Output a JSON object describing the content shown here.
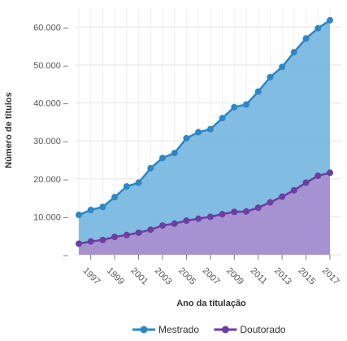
{
  "chart_data": {
    "type": "area",
    "x": [
      1996,
      1997,
      1998,
      1999,
      2000,
      2001,
      2002,
      2003,
      2004,
      2005,
      2006,
      2007,
      2008,
      2009,
      2010,
      2011,
      2012,
      2013,
      2014,
      2015,
      2016,
      2017
    ],
    "x_tick_labels": [
      "1997",
      "1999",
      "2001",
      "2003",
      "2005",
      "2007",
      "2009",
      "2011",
      "2013",
      "2015",
      "2017"
    ],
    "y_tick_labels": [
      "–",
      "10.000",
      "20.000",
      "30.000",
      "40.000",
      "50.000",
      "60.000"
    ],
    "series": [
      {
        "name": "Mestrado",
        "color": "#2f86c3",
        "fill": "#7ab8e0",
        "values": [
          10500,
          11800,
          12600,
          15200,
          18000,
          19000,
          22800,
          25500,
          26800,
          30700,
          32300,
          33100,
          36000,
          38900,
          39600,
          43000,
          46800,
          49500,
          53400,
          57000,
          59700,
          61800
        ]
      },
      {
        "name": "Doutorado",
        "color": "#6a3fa0",
        "fill": "#a98fd0",
        "values": [
          2900,
          3500,
          3900,
          4700,
          5200,
          5800,
          6600,
          7700,
          8200,
          9000,
          9500,
          10000,
          10700,
          11300,
          11400,
          12400,
          13800,
          15300,
          17000,
          19000,
          20800,
          21600
        ]
      }
    ],
    "xlabel": "Ano da titulação",
    "ylabel": "Número de títulos",
    "ylim": [
      0,
      65000
    ],
    "grid": true,
    "legend_position": "bottom"
  }
}
